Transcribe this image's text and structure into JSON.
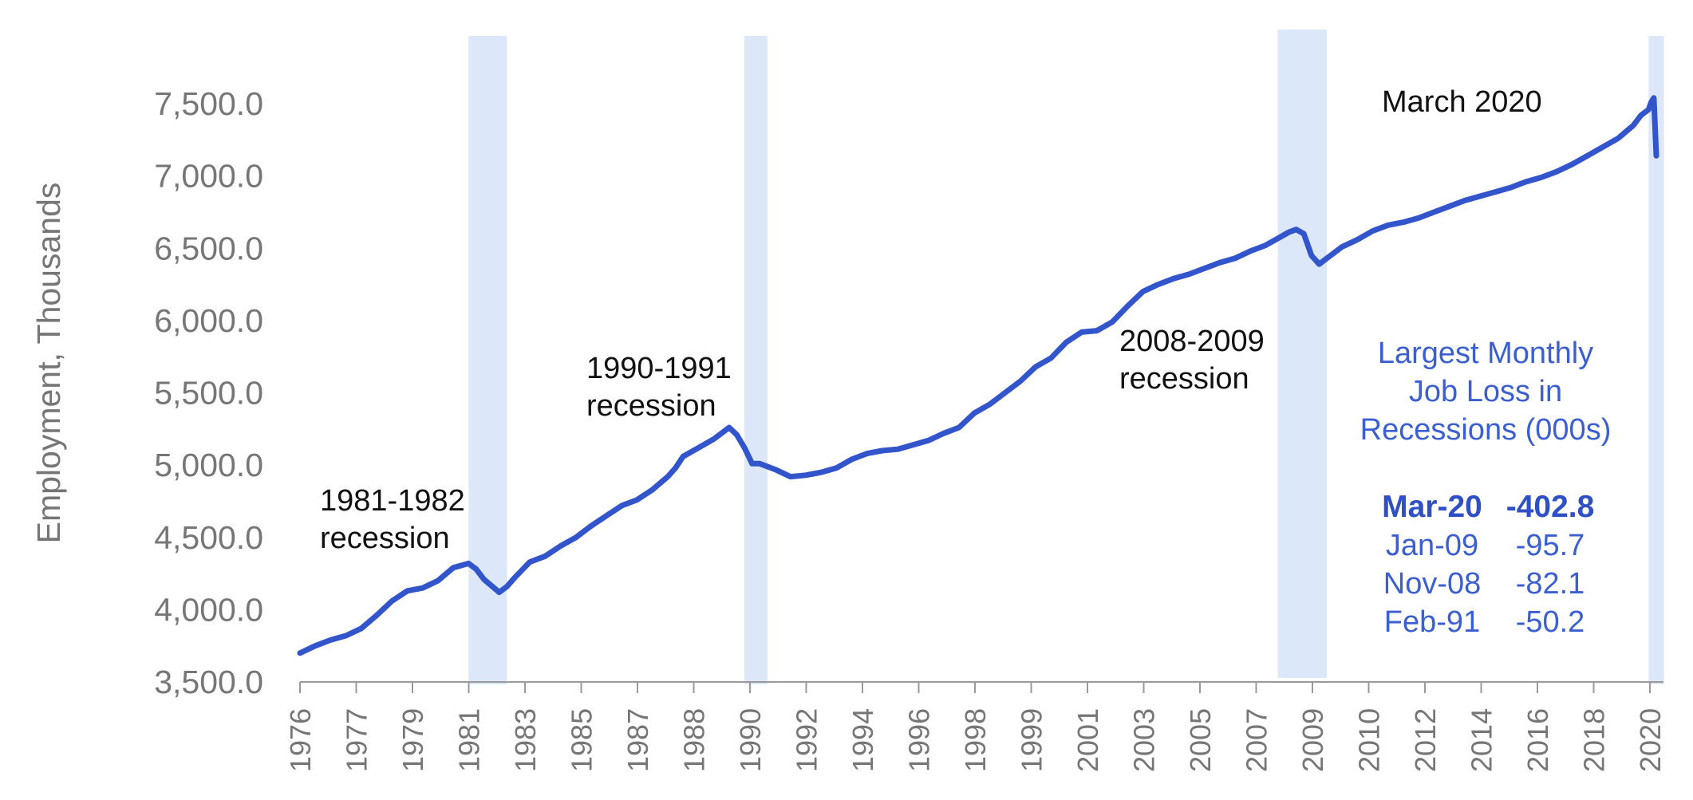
{
  "chart_data": {
    "type": "line",
    "title": "",
    "xlabel": "",
    "ylabel": "Employment, Thousands",
    "ylim": [
      3500,
      7500
    ],
    "yticks": [
      "3,500.0",
      "4,000.0",
      "4,500.0",
      "5,000.0",
      "5,500.0",
      "6,000.0",
      "6,500.0",
      "7,000.0",
      "7,500.0"
    ],
    "xtick_labels": [
      "1976",
      "1977",
      "1979",
      "1981",
      "1983",
      "1985",
      "1987",
      "1988",
      "1990",
      "1992",
      "1994",
      "1996",
      "1998",
      "1999",
      "2001",
      "2003",
      "2005",
      "2007",
      "2009",
      "2010",
      "2012",
      "2014",
      "2016",
      "2018",
      "2020"
    ],
    "x_range": [
      1976.0,
      2020.25
    ],
    "grid": false,
    "legend": "none",
    "line_color": "#3355cc",
    "band_color": "#dce8fa",
    "series": [
      {
        "x": [
          1976.0,
          1976.5,
          1977.0,
          1977.5,
          1978.0,
          1978.5,
          1979.0,
          1979.5,
          1980.0,
          1980.5,
          1981.0,
          1981.5,
          1981.75,
          1982.0,
          1982.5,
          1982.75,
          1983.0,
          1983.5,
          1984.0,
          1984.5,
          1985.0,
          1985.5,
          1986.0,
          1986.5,
          1987.0,
          1987.5,
          1988.0,
          1988.25,
          1988.5,
          1989.0,
          1989.5,
          1989.75,
          1990.0,
          1990.25,
          1990.5,
          1990.75,
          1991.0,
          1991.5,
          1992.0,
          1992.5,
          1993.0,
          1993.5,
          1994.0,
          1994.5,
          1995.0,
          1995.5,
          1996.0,
          1996.5,
          1997.0,
          1997.5,
          1998.0,
          1998.5,
          1999.0,
          1999.5,
          2000.0,
          2000.5,
          2001.0,
          2001.5,
          2002.0,
          2002.5,
          2003.0,
          2003.5,
          2004.0,
          2004.5,
          2005.0,
          2005.5,
          2006.0,
          2006.5,
          2007.0,
          2007.5,
          2008.0,
          2008.25,
          2008.5,
          2008.75,
          2009.0,
          2009.25,
          2009.5,
          2009.75,
          2010.0,
          2010.5,
          2011.0,
          2011.5,
          2012.0,
          2012.5,
          2013.0,
          2013.5,
          2014.0,
          2014.5,
          2015.0,
          2015.5,
          2016.0,
          2016.5,
          2017.0,
          2017.5,
          2018.0,
          2018.5,
          2019.0,
          2019.5,
          2019.75,
          2020.0,
          2020.08,
          2020.17,
          2020.25
        ],
        "y": [
          3700,
          3750,
          3790,
          3820,
          3870,
          3960,
          4060,
          4130,
          4150,
          4200,
          4290,
          4320,
          4280,
          4210,
          4120,
          4160,
          4220,
          4330,
          4370,
          4440,
          4500,
          4580,
          4650,
          4720,
          4760,
          4830,
          4920,
          4980,
          5060,
          5120,
          5180,
          5220,
          5260,
          5210,
          5120,
          5010,
          5010,
          4970,
          4920,
          4930,
          4950,
          4980,
          5040,
          5080,
          5100,
          5110,
          5140,
          5170,
          5220,
          5260,
          5360,
          5420,
          5500,
          5580,
          5680,
          5740,
          5850,
          5920,
          5930,
          5990,
          6100,
          6200,
          6250,
          6290,
          6320,
          6360,
          6400,
          6430,
          6480,
          6520,
          6580,
          6610,
          6630,
          6600,
          6450,
          6390,
          6430,
          6470,
          6510,
          6560,
          6620,
          6660,
          6680,
          6710,
          6750,
          6790,
          6830,
          6860,
          6890,
          6920,
          6960,
          6990,
          7030,
          7080,
          7140,
          7200,
          7260,
          7350,
          7420,
          7460,
          7510,
          7540,
          7140
        ]
      }
    ],
    "recession_bands": [
      {
        "x0": 1981.5,
        "x1": 1982.75
      },
      {
        "x0": 1990.5,
        "x1": 1991.25
      },
      {
        "x0": 2007.9,
        "x1": 2009.5
      },
      {
        "x0": 2020.0,
        "x1": 2020.5
      }
    ],
    "annotations": [
      {
        "lines": [
          "1981-1982",
          "recession"
        ]
      },
      {
        "lines": [
          "1990-1991",
          "recession"
        ]
      },
      {
        "lines": [
          "2008-2009",
          "recession"
        ]
      },
      {
        "lines": [
          "March 2020"
        ]
      }
    ],
    "side_table": {
      "title_lines": [
        "Largest Monthly",
        "Job Loss in",
        "Recessions (000s)"
      ],
      "rows": [
        {
          "date": "Mar-20",
          "value": "-402.8",
          "bold": true
        },
        {
          "date": "Jan-09",
          "value": "-95.7",
          "bold": false
        },
        {
          "date": "Nov-08",
          "value": "-82.1",
          "bold": false
        },
        {
          "date": "Feb-91",
          "value": "-50.2",
          "bold": false
        }
      ]
    }
  }
}
